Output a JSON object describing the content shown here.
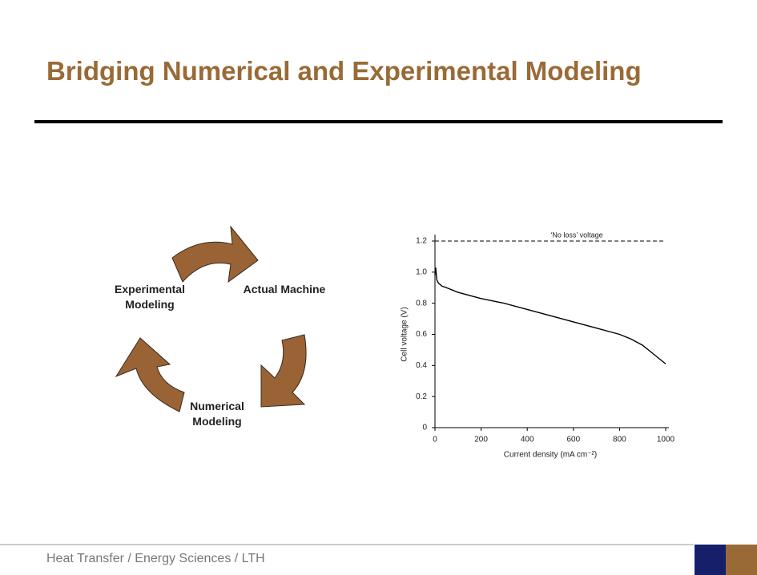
{
  "header": {
    "title": "Bridging Numerical and Experimental Modeling"
  },
  "cycle": {
    "nodes": [
      {
        "label": "Actual Machine"
      },
      {
        "label": "Numerical Modeling"
      },
      {
        "label": "Experimental Modeling"
      }
    ]
  },
  "chart_data": {
    "type": "line",
    "x": [
      0,
      3,
      8,
      15,
      30,
      50,
      100,
      200,
      300,
      400,
      500,
      600,
      700,
      800,
      850,
      900,
      950,
      1000
    ],
    "values": [
      0.98,
      1.03,
      0.95,
      0.93,
      0.91,
      0.9,
      0.87,
      0.83,
      0.8,
      0.76,
      0.72,
      0.68,
      0.64,
      0.6,
      0.57,
      0.53,
      0.47,
      0.41
    ],
    "color": "#000000",
    "xlim": [
      0,
      1000
    ],
    "xticks": [
      0,
      200,
      400,
      600,
      800,
      1000
    ],
    "ylim": [
      0,
      1.2
    ],
    "yticks": [
      0,
      0.2,
      0.4,
      0.6,
      0.8,
      {
        "value": 1,
        "label": "1.0"
      },
      1.2
    ],
    "xlabel": "Current density (mA cm⁻²)",
    "ylabel": "Cell voltage (V)",
    "reference_line": {
      "label": "‘No loss’ voltage",
      "value": 1.2
    }
  },
  "footer": {
    "text": "Heat Transfer / Energy Sciences / LTH"
  }
}
